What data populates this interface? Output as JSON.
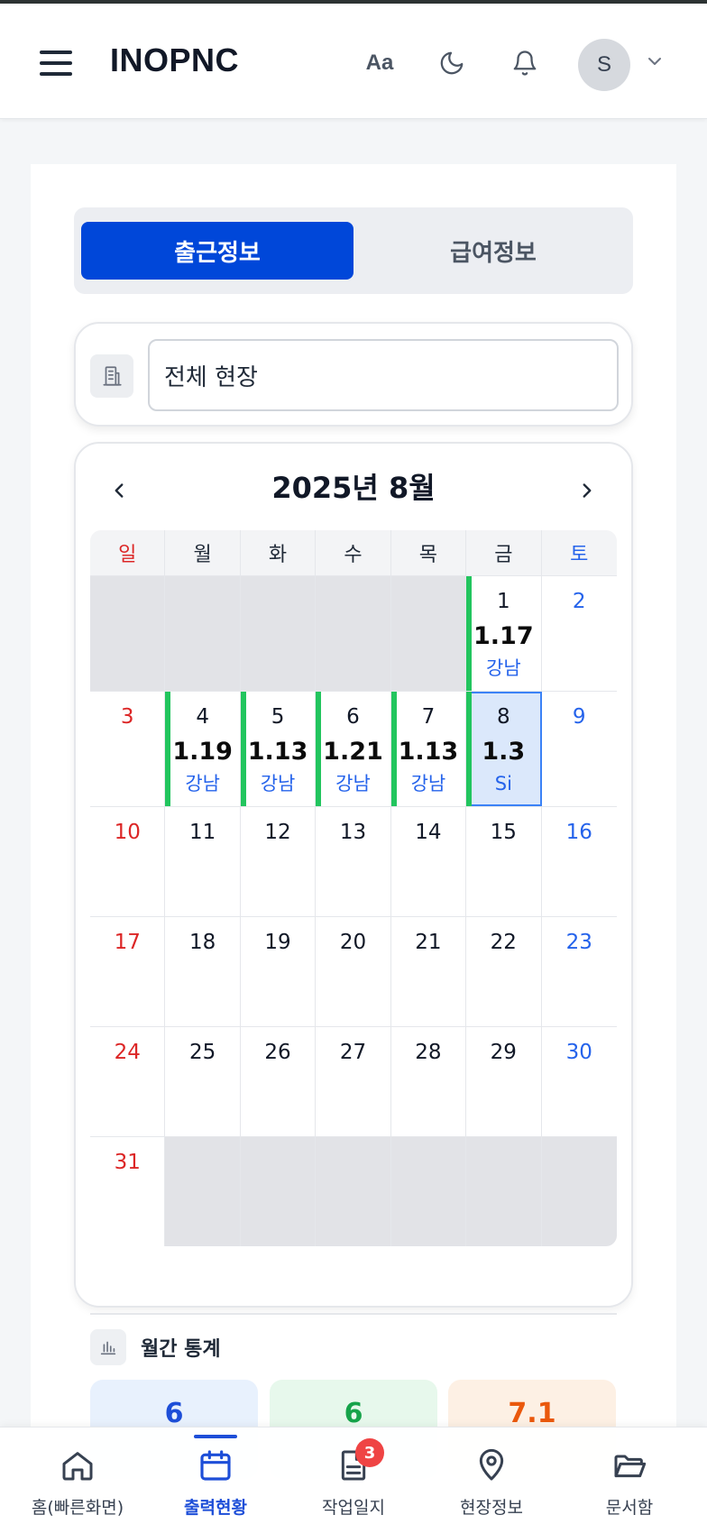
{
  "header": {
    "brand": "INOPNC",
    "font_size_label": "Aa",
    "avatar_initial": "S"
  },
  "tabs": [
    {
      "label": "출근정보",
      "active": true
    },
    {
      "label": "급여정보",
      "active": false
    }
  ],
  "site_filter": {
    "value": "전체 현장"
  },
  "calendar": {
    "title": "2025년 8월",
    "weekdays": [
      "일",
      "월",
      "화",
      "수",
      "목",
      "금",
      "토"
    ],
    "weeks": [
      [
        {
          "day": "",
          "empty": true
        },
        {
          "day": "",
          "empty": true
        },
        {
          "day": "",
          "empty": true
        },
        {
          "day": "",
          "empty": true
        },
        {
          "day": "",
          "empty": true
        },
        {
          "day": "1",
          "hours": "1.17",
          "site": "강남",
          "worked": true
        },
        {
          "day": "2"
        }
      ],
      [
        {
          "day": "3"
        },
        {
          "day": "4",
          "hours": "1.19",
          "site": "강남",
          "worked": true
        },
        {
          "day": "5",
          "hours": "1.13",
          "site": "강남",
          "worked": true
        },
        {
          "day": "6",
          "hours": "1.21",
          "site": "강남",
          "worked": true
        },
        {
          "day": "7",
          "hours": "1.13",
          "site": "강남",
          "worked": true
        },
        {
          "day": "8",
          "hours": "1.3",
          "site": "Si",
          "worked": true,
          "selected": true
        },
        {
          "day": "9"
        }
      ],
      [
        {
          "day": "10"
        },
        {
          "day": "11"
        },
        {
          "day": "12"
        },
        {
          "day": "13"
        },
        {
          "day": "14"
        },
        {
          "day": "15"
        },
        {
          "day": "16"
        }
      ],
      [
        {
          "day": "17"
        },
        {
          "day": "18"
        },
        {
          "day": "19"
        },
        {
          "day": "20"
        },
        {
          "day": "21"
        },
        {
          "day": "22"
        },
        {
          "day": "23"
        }
      ],
      [
        {
          "day": "24"
        },
        {
          "day": "25"
        },
        {
          "day": "26"
        },
        {
          "day": "27"
        },
        {
          "day": "28"
        },
        {
          "day": "29"
        },
        {
          "day": "30"
        }
      ],
      [
        {
          "day": "31"
        },
        {
          "day": "",
          "empty": true
        },
        {
          "day": "",
          "empty": true
        },
        {
          "day": "",
          "empty": true
        },
        {
          "day": "",
          "empty": true
        },
        {
          "day": "",
          "empty": true
        },
        {
          "day": "",
          "empty": true
        }
      ]
    ]
  },
  "stats": {
    "title": "월간 통계",
    "items": [
      {
        "value": "6",
        "color": "#1d4ed8",
        "bg": "#e8f1fd"
      },
      {
        "value": "6",
        "color": "#16a34a",
        "bg": "#e7f8ec"
      },
      {
        "value": "7.1",
        "color": "#ea580c",
        "bg": "#fdf0e4"
      }
    ]
  },
  "bottom_nav": [
    {
      "label": "홈(빠른화면)",
      "icon": "home-icon"
    },
    {
      "label": "출력현황",
      "icon": "calendar-icon",
      "active": true
    },
    {
      "label": "작업일지",
      "icon": "document-icon",
      "badge": "3"
    },
    {
      "label": "현장정보",
      "icon": "map-pin-icon"
    },
    {
      "label": "문서함",
      "icon": "folder-icon"
    }
  ],
  "colors": {
    "primary": "#0047d9",
    "sunday": "#dc2626",
    "saturday": "#2563eb",
    "worked_marker": "#22c55e"
  }
}
